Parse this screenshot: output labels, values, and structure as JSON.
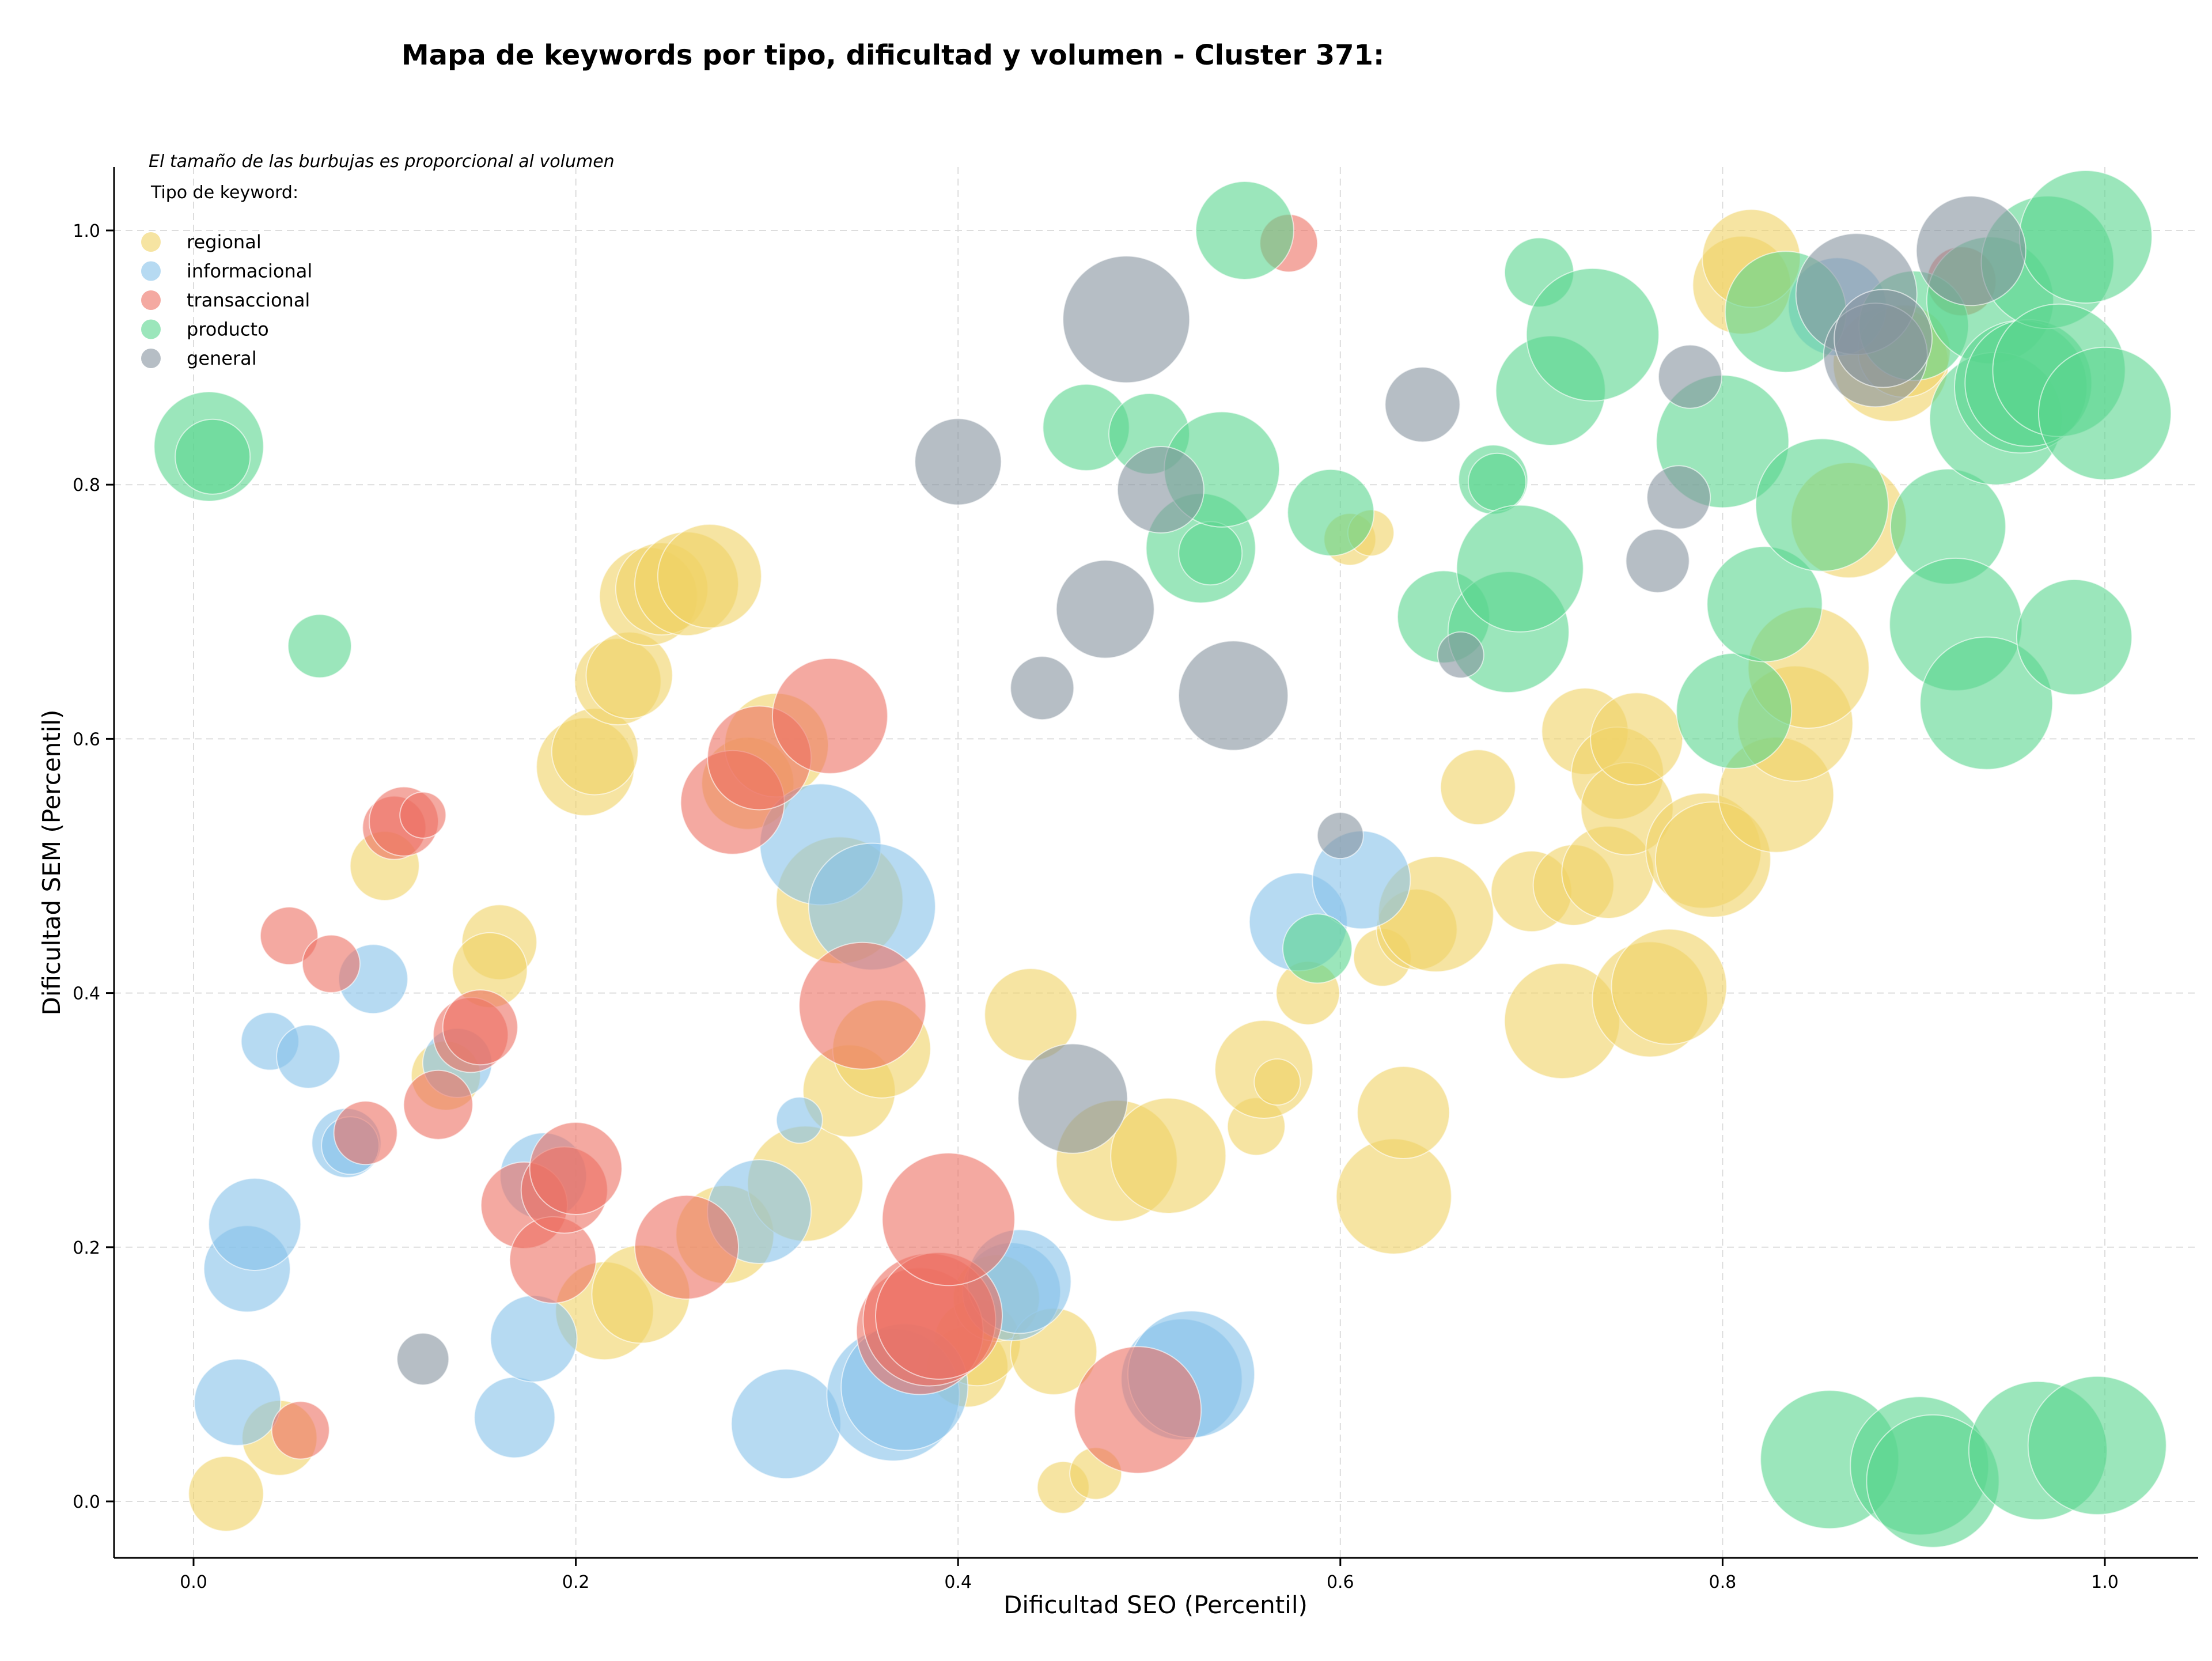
{
  "chart_data": {
    "type": "scatter",
    "title": "Mapa de keywords por tipo, dificultad y volumen - Cluster 371:",
    "xlabel": "Dificultad SEO (Percentil)",
    "ylabel": "Dificultad SEM (Percentil)",
    "xlim": [
      -0.04,
      1.05
    ],
    "ylim": [
      -0.045,
      1.05
    ],
    "x_ticks": [
      "0.0",
      "0.2",
      "0.4",
      "0.6",
      "0.8",
      "1.0"
    ],
    "y_ticks": [
      "0.0",
      "0.2",
      "0.4",
      "0.6",
      "0.8",
      "1.0"
    ],
    "grid": true,
    "size_note": "El tamaño de las burbujas es proporcional al volumen",
    "legend_title": "Tipo de keyword:",
    "legend_position": "top-left",
    "series": [
      {
        "name": "regional",
        "color": "#f0d264",
        "points": [
          [
            0.017,
            0.006,
            26
          ],
          [
            0.045,
            0.05,
            26
          ],
          [
            0.1,
            0.5,
            24
          ],
          [
            0.16,
            0.44,
            26
          ],
          [
            0.155,
            0.418,
            26
          ],
          [
            0.132,
            0.335,
            24
          ],
          [
            0.205,
            0.578,
            34
          ],
          [
            0.21,
            0.59,
            30
          ],
          [
            0.222,
            0.645,
            30
          ],
          [
            0.228,
            0.65,
            30
          ],
          [
            0.238,
            0.712,
            34
          ],
          [
            0.245,
            0.718,
            32
          ],
          [
            0.258,
            0.722,
            36
          ],
          [
            0.27,
            0.728,
            36
          ],
          [
            0.215,
            0.15,
            34
          ],
          [
            0.234,
            0.163,
            34
          ],
          [
            0.278,
            0.21,
            34
          ],
          [
            0.29,
            0.565,
            32
          ],
          [
            0.305,
            0.595,
            36
          ],
          [
            0.32,
            0.25,
            40
          ],
          [
            0.338,
            0.473,
            44
          ],
          [
            0.343,
            0.323,
            32
          ],
          [
            0.36,
            0.356,
            34
          ],
          [
            0.405,
            0.106,
            28
          ],
          [
            0.41,
            0.125,
            30
          ],
          [
            0.42,
            0.16,
            30
          ],
          [
            0.438,
            0.383,
            32
          ],
          [
            0.45,
            0.118,
            30
          ],
          [
            0.455,
            0.011,
            18
          ],
          [
            0.472,
            0.022,
            18
          ],
          [
            0.483,
            0.268,
            42
          ],
          [
            0.51,
            0.272,
            40
          ],
          [
            0.556,
            0.295,
            20
          ],
          [
            0.56,
            0.34,
            34
          ],
          [
            0.567,
            0.33,
            16
          ],
          [
            0.583,
            0.4,
            22
          ],
          [
            0.605,
            0.757,
            18
          ],
          [
            0.616,
            0.762,
            16
          ],
          [
            0.622,
            0.428,
            20
          ],
          [
            0.628,
            0.24,
            40
          ],
          [
            0.633,
            0.306,
            32
          ],
          [
            0.64,
            0.45,
            28
          ],
          [
            0.65,
            0.462,
            40
          ],
          [
            0.672,
            0.562,
            26
          ],
          [
            0.7,
            0.48,
            28
          ],
          [
            0.716,
            0.378,
            40
          ],
          [
            0.722,
            0.485,
            28
          ],
          [
            0.728,
            0.606,
            30
          ],
          [
            0.74,
            0.495,
            32
          ],
          [
            0.745,
            0.573,
            32
          ],
          [
            0.75,
            0.545,
            32
          ],
          [
            0.755,
            0.6,
            32
          ],
          [
            0.762,
            0.395,
            40
          ],
          [
            0.772,
            0.405,
            40
          ],
          [
            0.79,
            0.512,
            40
          ],
          [
            0.795,
            0.505,
            40
          ],
          [
            0.81,
            0.957,
            34
          ],
          [
            0.815,
            0.978,
            34
          ],
          [
            0.828,
            0.556,
            40
          ],
          [
            0.838,
            0.612,
            40
          ],
          [
            0.845,
            0.656,
            42
          ],
          [
            0.866,
            0.772,
            40
          ],
          [
            0.888,
            0.895,
            40
          ],
          [
            0.895,
            0.905,
            32
          ]
        ]
      },
      {
        "name": "informacional",
        "color": "#85c1e9",
        "points": [
          [
            0.023,
            0.078,
            30
          ],
          [
            0.028,
            0.183,
            30
          ],
          [
            0.032,
            0.218,
            32
          ],
          [
            0.04,
            0.362,
            20
          ],
          [
            0.06,
            0.35,
            22
          ],
          [
            0.08,
            0.282,
            24
          ],
          [
            0.082,
            0.28,
            20
          ],
          [
            0.094,
            0.411,
            24
          ],
          [
            0.138,
            0.345,
            24
          ],
          [
            0.168,
            0.066,
            28
          ],
          [
            0.178,
            0.128,
            30
          ],
          [
            0.183,
            0.256,
            30
          ],
          [
            0.296,
            0.228,
            36
          ],
          [
            0.31,
            0.061,
            38
          ],
          [
            0.317,
            0.3,
            16
          ],
          [
            0.328,
            0.517,
            42
          ],
          [
            0.355,
            0.468,
            44
          ],
          [
            0.366,
            0.084,
            46
          ],
          [
            0.372,
            0.09,
            44
          ],
          [
            0.428,
            0.165,
            34
          ],
          [
            0.432,
            0.173,
            36
          ],
          [
            0.517,
            0.096,
            42
          ],
          [
            0.522,
            0.1,
            44
          ],
          [
            0.578,
            0.456,
            34
          ],
          [
            0.611,
            0.489,
            34
          ],
          [
            0.86,
            0.94,
            34
          ]
        ]
      },
      {
        "name": "transaccional",
        "color": "#ec7063",
        "points": [
          [
            0.05,
            0.445,
            20
          ],
          [
            0.056,
            0.056,
            20
          ],
          [
            0.072,
            0.423,
            20
          ],
          [
            0.09,
            0.29,
            22
          ],
          [
            0.105,
            0.53,
            22
          ],
          [
            0.11,
            0.535,
            24
          ],
          [
            0.12,
            0.54,
            16
          ],
          [
            0.128,
            0.312,
            24
          ],
          [
            0.145,
            0.367,
            26
          ],
          [
            0.15,
            0.373,
            26
          ],
          [
            0.173,
            0.233,
            30
          ],
          [
            0.188,
            0.19,
            30
          ],
          [
            0.194,
            0.245,
            30
          ],
          [
            0.2,
            0.262,
            32
          ],
          [
            0.258,
            0.2,
            36
          ],
          [
            0.282,
            0.55,
            36
          ],
          [
            0.296,
            0.585,
            36
          ],
          [
            0.333,
            0.618,
            40
          ],
          [
            0.35,
            0.39,
            44
          ],
          [
            0.38,
            0.134,
            44
          ],
          [
            0.385,
            0.143,
            46
          ],
          [
            0.39,
            0.146,
            44
          ],
          [
            0.395,
            0.222,
            46
          ],
          [
            0.494,
            0.072,
            44
          ],
          [
            0.573,
            0.99,
            20
          ],
          [
            0.925,
            0.96,
            24
          ]
        ]
      },
      {
        "name": "producto",
        "color": "#58d68d",
        "points": [
          [
            0.008,
            0.83,
            38
          ],
          [
            0.01,
            0.822,
            26
          ],
          [
            0.066,
            0.673,
            22
          ],
          [
            0.467,
            0.845,
            30
          ],
          [
            0.5,
            0.84,
            28
          ],
          [
            0.527,
            0.75,
            38
          ],
          [
            0.532,
            0.746,
            22
          ],
          [
            0.538,
            0.812,
            40
          ],
          [
            0.55,
            1.0,
            34
          ],
          [
            0.595,
            0.778,
            30
          ],
          [
            0.654,
            0.696,
            32
          ],
          [
            0.68,
            0.804,
            24
          ],
          [
            0.682,
            0.802,
            20
          ],
          [
            0.688,
            0.684,
            42
          ],
          [
            0.694,
            0.734,
            44
          ],
          [
            0.704,
            0.967,
            24
          ],
          [
            0.71,
            0.874,
            38
          ],
          [
            0.732,
            0.918,
            46
          ],
          [
            0.8,
            0.834,
            46
          ],
          [
            0.806,
            0.622,
            40
          ],
          [
            0.822,
            0.706,
            40
          ],
          [
            0.833,
            0.936,
            42
          ],
          [
            0.852,
            0.784,
            46
          ],
          [
            0.856,
            0.033,
            48
          ],
          [
            0.9,
            0.925,
            38
          ],
          [
            0.903,
            0.028,
            48
          ],
          [
            0.91,
            0.016,
            46
          ],
          [
            0.918,
            0.767,
            40
          ],
          [
            0.922,
            0.69,
            46
          ],
          [
            0.938,
            0.628,
            46
          ],
          [
            0.94,
            0.945,
            44
          ],
          [
            0.943,
            0.852,
            46
          ],
          [
            0.956,
            0.877,
            46
          ],
          [
            0.96,
            0.88,
            44
          ],
          [
            0.965,
            0.04,
            48
          ],
          [
            0.97,
            0.975,
            46
          ],
          [
            0.976,
            0.89,
            46
          ],
          [
            0.984,
            0.68,
            40
          ],
          [
            0.99,
            0.995,
            46
          ],
          [
            0.996,
            0.044,
            48
          ],
          [
            1.0,
            0.856,
            46
          ],
          [
            0.588,
            0.435,
            24
          ]
        ]
      },
      {
        "name": "general",
        "color": "#85929e",
        "points": [
          [
            0.12,
            0.112,
            18
          ],
          [
            0.4,
            0.818,
            30
          ],
          [
            0.444,
            0.64,
            22
          ],
          [
            0.46,
            0.317,
            38
          ],
          [
            0.477,
            0.702,
            34
          ],
          [
            0.488,
            0.93,
            44
          ],
          [
            0.506,
            0.796,
            30
          ],
          [
            0.544,
            0.634,
            38
          ],
          [
            0.6,
            0.524,
            16
          ],
          [
            0.643,
            0.863,
            26
          ],
          [
            0.663,
            0.666,
            16
          ],
          [
            0.766,
            0.74,
            22
          ],
          [
            0.777,
            0.79,
            22
          ],
          [
            0.783,
            0.885,
            22
          ],
          [
            0.87,
            0.95,
            42
          ],
          [
            0.88,
            0.902,
            36
          ],
          [
            0.884,
            0.915,
            34
          ],
          [
            0.93,
            0.984,
            38
          ]
        ]
      }
    ]
  }
}
